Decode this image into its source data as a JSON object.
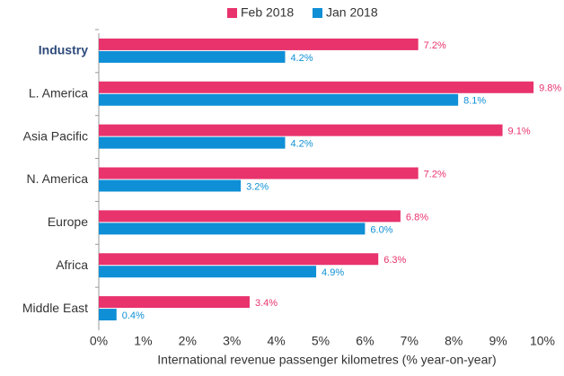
{
  "chart_data": {
    "type": "hbar",
    "categories": [
      "Industry",
      "L. America",
      "Asia Pacific",
      "N. America",
      "Europe",
      "Africa",
      "Middle East"
    ],
    "series": [
      {
        "name": "Feb 2018",
        "color": "#e8336d",
        "values": [
          7.2,
          9.8,
          9.1,
          7.2,
          6.8,
          6.3,
          3.4
        ],
        "value_labels": [
          "7.2%",
          "9.8%",
          "9.1%",
          "7.2%",
          "6.8%",
          "6.3%",
          "3.4%"
        ]
      },
      {
        "name": "Jan 2018",
        "color": "#0f8fd6",
        "values": [
          4.2,
          8.1,
          4.2,
          3.2,
          6.0,
          4.9,
          0.4
        ],
        "value_labels": [
          "4.2%",
          "8.1%",
          "4.2%",
          "3.2%",
          "6.0%",
          "4.9%",
          "0.4%"
        ]
      }
    ],
    "xlabel": "International revenue passenger kilometres (% year-on-year)",
    "xlim": [
      0,
      10
    ],
    "xticks": [
      {
        "value": 0,
        "label": "0%"
      },
      {
        "value": 1,
        "label": "1%"
      },
      {
        "value": 2,
        "label": "2%"
      },
      {
        "value": 3,
        "label": "3%"
      },
      {
        "value": 4,
        "label": "4%"
      },
      {
        "value": 5,
        "label": "5%"
      },
      {
        "value": 6,
        "label": "6%"
      },
      {
        "value": 7,
        "label": "7%"
      },
      {
        "value": 8,
        "label": "8%"
      },
      {
        "value": 9,
        "label": "9%"
      },
      {
        "value": 10,
        "label": "10%"
      }
    ],
    "legend": "top",
    "grid": false
  }
}
